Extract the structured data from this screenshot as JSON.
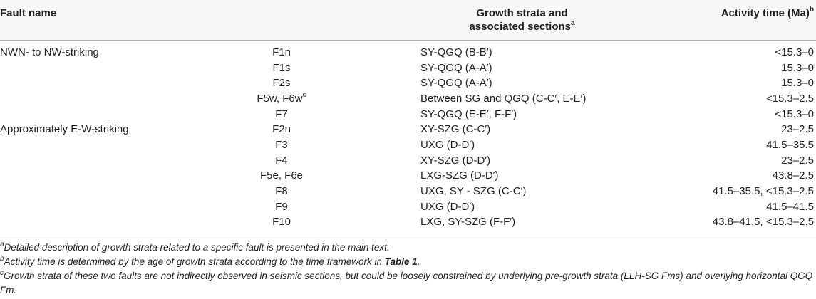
{
  "header": {
    "fault_name": "Fault name",
    "growth_line1": "Growth strata and",
    "growth_line2": "associated sections",
    "growth_sup": "a",
    "activity": "Activity time (Ma)",
    "activity_sup": "b"
  },
  "rows": [
    {
      "group": "NWN- to NW-striking",
      "fault": "F1n",
      "fault_sup": "",
      "strata": "SY-QGQ (B-B′)",
      "time": "<15.3–0"
    },
    {
      "group": "",
      "fault": "F1s",
      "fault_sup": "",
      "strata": "SY-QGQ (A-A′)",
      "time": "15.3–0"
    },
    {
      "group": "",
      "fault": "F2s",
      "fault_sup": "",
      "strata": "SY-QGQ (A-A′)",
      "time": "15.3–0"
    },
    {
      "group": "",
      "fault": "F5w, F6w",
      "fault_sup": "c",
      "strata": "Between SG and QGQ (C-C′, E-E′)",
      "time": "<15.3–2.5"
    },
    {
      "group": "",
      "fault": "F7",
      "fault_sup": "",
      "strata": "SY-QGQ (E-E′, F-F′)",
      "time": "<15.3–0"
    },
    {
      "group": "Approximately E-W-striking",
      "fault": "F2n",
      "fault_sup": "",
      "strata": "XY-SZG (C-C′)",
      "time": "23–2.5"
    },
    {
      "group": "",
      "fault": "F3",
      "fault_sup": "",
      "strata": "UXG (D-D′)",
      "time": "41.5–35.5"
    },
    {
      "group": "",
      "fault": "F4",
      "fault_sup": "",
      "strata": "XY-SZG (D-D′)",
      "time": "23–2.5"
    },
    {
      "group": "",
      "fault": "F5e, F6e",
      "fault_sup": "",
      "strata": "LXG-SZG (D-D′)",
      "time": "43.8–2.5"
    },
    {
      "group": "",
      "fault": "F8",
      "fault_sup": "",
      "strata": "UXG, SY - SZG (C-C′)",
      "time": "41.5–35.5, <15.3–2.5"
    },
    {
      "group": "",
      "fault": "F9",
      "fault_sup": "",
      "strata": "UXG (D-D′)",
      "time": "41.5–41.5"
    },
    {
      "group": "",
      "fault": "F10",
      "fault_sup": "",
      "strata": "LXG, SY-SZG (F-F′)",
      "time": "43.8–41.5, <15.3–2.5"
    }
  ],
  "notes": {
    "a_sup": "a",
    "a_text": "Detailed description of growth strata related to a specific fault is presented in the main text.",
    "b_sup": "b",
    "b_text": "Activity time is determined by the age of growth strata according to the time framework in ",
    "b_bold": "Table 1",
    "b_end": ".",
    "c_sup": "c",
    "c_text": "Growth strata of these two faults are not indirectly observed in seismic sections, but could be loosely constrained by underlying pre-growth strata (LLH-SG Fms) and overlying horizontal QGQ Fm."
  }
}
